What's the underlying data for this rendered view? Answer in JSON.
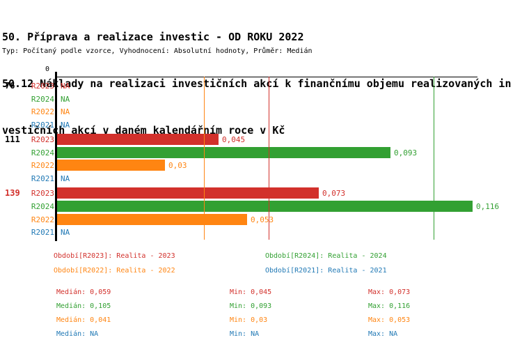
{
  "header": {
    "title_lines": [
      "50. Příprava a realizace investic - OD ROKU 2022",
      "50.12 Náklady na realizaci investičních akcí k finančnímu objemu realizovaných in",
      "vestičních akcí v daném kalendářním roce v Kč"
    ],
    "subtitle": "Typ: Počítaný podle vzorce, Vyhodnocení: Absolutní hodnoty, Průměr: Medián"
  },
  "chart_data": {
    "type": "bar",
    "orientation": "horizontal",
    "x_axis": {
      "zero_label": "0",
      "min": 0,
      "max": 0.1175,
      "gridlines": false
    },
    "series": [
      {
        "id": "R2023",
        "name": "Realita - 2023",
        "color": "#d2302b"
      },
      {
        "id": "R2024",
        "name": "Realita - 2024",
        "color": "#32a032"
      },
      {
        "id": "R2022",
        "name": "Realita - 2022",
        "color": "#ff8512"
      },
      {
        "id": "R2021",
        "name": "Realita - 2021",
        "color": "#2179b5"
      }
    ],
    "groups": [
      {
        "label": "76",
        "highlighted": false,
        "rows": [
          {
            "series": "R2023",
            "value": "NA"
          },
          {
            "series": "R2024",
            "value": "NA"
          },
          {
            "series": "R2022",
            "value": "NA"
          },
          {
            "series": "R2021",
            "value": "NA"
          }
        ]
      },
      {
        "label": "111",
        "highlighted": false,
        "rows": [
          {
            "series": "R2023",
            "value": "0,045"
          },
          {
            "series": "R2024",
            "value": "0,093"
          },
          {
            "series": "R2022",
            "value": "0,03"
          },
          {
            "series": "R2021",
            "value": "NA"
          }
        ]
      },
      {
        "label": "139",
        "highlighted": true,
        "rows": [
          {
            "series": "R2023",
            "value": "0,073"
          },
          {
            "series": "R2024",
            "value": "0,116"
          },
          {
            "series": "R2022",
            "value": "0,053"
          },
          {
            "series": "R2021",
            "value": "NA"
          }
        ]
      }
    ],
    "median_lines": [
      {
        "series": "R2023",
        "value": "0,059"
      },
      {
        "series": "R2024",
        "value": "0,105"
      },
      {
        "series": "R2022",
        "value": "0,041"
      }
    ]
  },
  "legend": {
    "items": [
      {
        "series": "R2023",
        "label": "Období[R2023]: Realita - 2023"
      },
      {
        "series": "R2024",
        "label": "Období[R2024]: Realita - 2024"
      },
      {
        "series": "R2022",
        "label": "Období[R2022]: Realita - 2022"
      },
      {
        "series": "R2021",
        "label": "Období[R2021]: Realita - 2021"
      }
    ]
  },
  "stats": {
    "labels": {
      "median": "Medián",
      "min": "Min",
      "max": "Max"
    },
    "rows": [
      {
        "series": "R2023",
        "median": "0,059",
        "min": "0,045",
        "max": "0,073"
      },
      {
        "series": "R2024",
        "median": "0,105",
        "min": "0,093",
        "max": "0,116"
      },
      {
        "series": "R2022",
        "median": "0,041",
        "min": "0,03",
        "max": "0,053"
      },
      {
        "series": "R2021",
        "median": "NA",
        "min": "NA",
        "max": "NA"
      }
    ]
  },
  "colors": {
    "text": "#000000",
    "highlight_group_label": "#d2302b",
    "axis": "#000000"
  }
}
